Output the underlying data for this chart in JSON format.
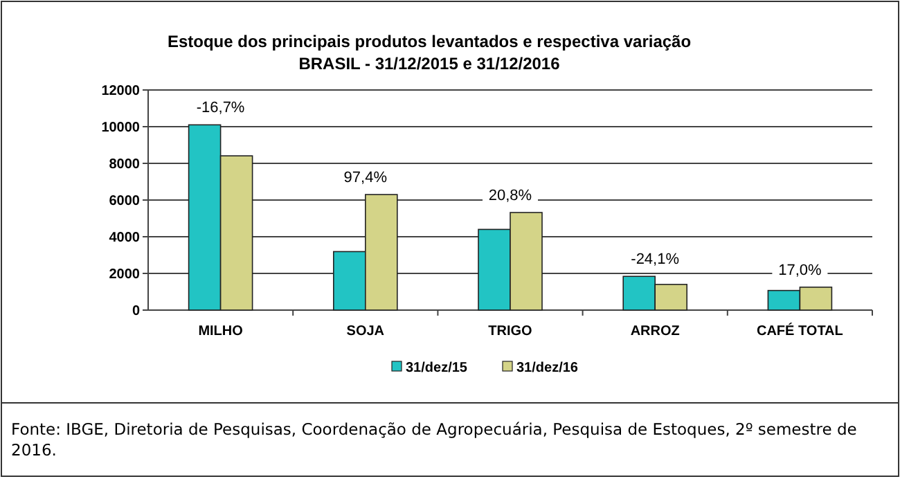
{
  "chart_data": {
    "type": "bar",
    "title": "Estoque dos principais produtos levantados e respectiva variação",
    "subtitle": "BRASIL - 31/12/2015 e 31/12/2016",
    "categories": [
      "MILHO",
      "SOJA",
      "TRIGO",
      "ARROZ",
      "CAFÉ TOTAL"
    ],
    "series": [
      {
        "name": "31/dez/15",
        "color": "#22c4c4",
        "values": [
          10100,
          3190,
          4400,
          1840,
          1070
        ]
      },
      {
        "name": "31/dez/16",
        "color": "#d4d488",
        "values": [
          8410,
          6300,
          5320,
          1400,
          1250
        ]
      }
    ],
    "ylim": [
      0,
      12000
    ],
    "yticks": [
      0,
      2000,
      4000,
      6000,
      8000,
      10000,
      12000
    ],
    "grid": "y",
    "legend": "bottom",
    "annotations": [
      {
        "text": "-16,7%",
        "x": "MILHO",
        "y": 10100
      },
      {
        "text": "97,4%",
        "x": "SOJA",
        "y": 6300
      },
      {
        "text": "20,8%",
        "x": "TRIGO",
        "y": 5320
      },
      {
        "text": "-24,1%",
        "x": "ARROZ",
        "y": 1840
      },
      {
        "text": "17,0%",
        "x": "CAFÉ TOTAL",
        "y": 1250
      },
      "Fonte: IBGE, Diretoria de Pesquisas, Coordenação de Agropecuária, Pesquisa de Estoques, 2º semestre de 2016."
    ]
  }
}
